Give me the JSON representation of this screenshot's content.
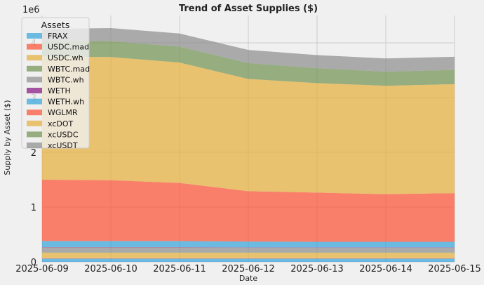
{
  "chart_data": {
    "type": "area",
    "stacked": true,
    "title": "Trend of Asset Supplies ($)",
    "xlabel": "Date",
    "ylabel": "Supply by Asset ($)",
    "y_offset_label": "1e6",
    "x": [
      "2025-06-09",
      "2025-06-10",
      "2025-06-11",
      "2025-06-12",
      "2025-06-13",
      "2025-06-14",
      "2025-06-15"
    ],
    "yticks": [
      0,
      1,
      2,
      3,
      4
    ],
    "ylim": [
      0,
      4500000
    ],
    "grid": true,
    "legend": {
      "title": "Assets",
      "placement": "top-left"
    },
    "series": [
      {
        "name": "FRAX",
        "color": "#30a2da",
        "values": [
          60000,
          60000,
          60000,
          60000,
          60000,
          60000,
          60000
        ]
      },
      {
        "name": "USDC.mad",
        "color": "#fc4f30",
        "values": [
          5000,
          5000,
          5000,
          5000,
          5000,
          5000,
          5000
        ]
      },
      {
        "name": "USDC.wh",
        "color": "#e5ae38",
        "values": [
          100000,
          100000,
          100000,
          100000,
          100000,
          100000,
          100000
        ]
      },
      {
        "name": "WBTC.mad",
        "color": "#6d904f",
        "values": [
          5000,
          5000,
          5000,
          5000,
          5000,
          5000,
          5000
        ]
      },
      {
        "name": "WBTC.wh",
        "color": "#8b8b8b",
        "values": [
          95000,
          95000,
          95000,
          90000,
          90000,
          90000,
          90000
        ]
      },
      {
        "name": "WETH",
        "color": "#810f7c",
        "values": [
          5000,
          5000,
          5000,
          5000,
          5000,
          5000,
          5000
        ]
      },
      {
        "name": "WETH.wh",
        "color": "#30a2da",
        "values": [
          110000,
          110000,
          110000,
          105000,
          100000,
          100000,
          100000
        ]
      },
      {
        "name": "WGLMR",
        "color": "#fc4f30",
        "values": [
          1120000,
          1110000,
          1060000,
          920000,
          900000,
          870000,
          890000
        ]
      },
      {
        "name": "xcDOT",
        "color": "#e5ae38",
        "values": [
          2250000,
          2250000,
          2200000,
          2050000,
          2000000,
          1980000,
          1990000
        ]
      },
      {
        "name": "xcUSDC",
        "color": "#6d904f",
        "values": [
          290000,
          290000,
          290000,
          290000,
          270000,
          260000,
          260000
        ]
      },
      {
        "name": "xcUSDT",
        "color": "#8b8b8b",
        "values": [
          210000,
          240000,
          240000,
          240000,
          240000,
          240000,
          240000
        ]
      }
    ]
  }
}
